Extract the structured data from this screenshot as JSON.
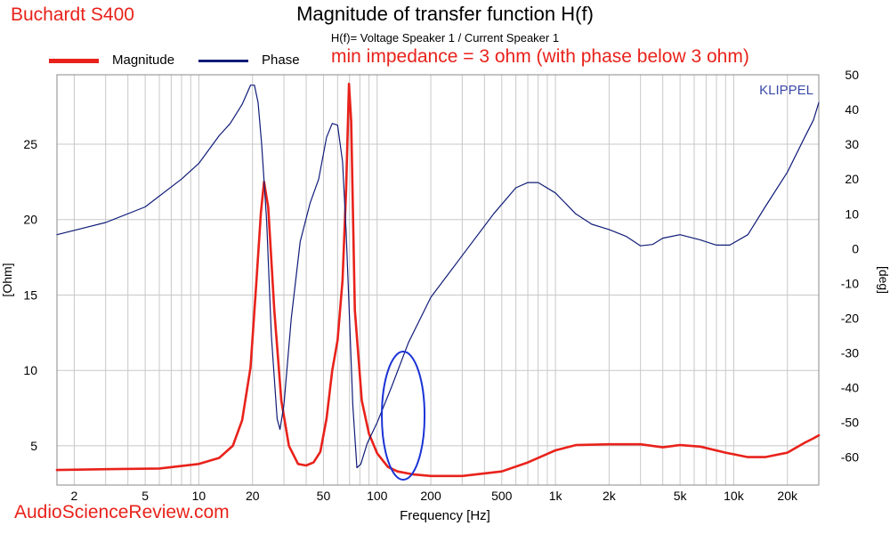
{
  "header": {
    "brand": "Buchardt S400",
    "title": "Magnitude of transfer function H(f)",
    "subtitle": "H(f)= Voltage Speaker 1 / Current Speaker 1",
    "note": "min impedance = 3 ohm (with phase below 3 ohm)",
    "klippel": "KLIPPEL",
    "watermark": "AudioScienceReview.com"
  },
  "colors": {
    "magnitude": "#e8221b",
    "phase": "#101c78",
    "ellipse": "#1a33d6",
    "grid": "#c8c8c8"
  },
  "chart_data": {
    "type": "line",
    "title": "Magnitude of transfer function H(f)",
    "subtitle": "H(f)= Voltage Speaker 1 / Current Speaker 1",
    "xlabel": "Frequency [Hz]",
    "ylabel": "[Ohm]",
    "y2label": "[deg]",
    "xscale": "log",
    "xlim": [
      1.6,
      30000
    ],
    "ylim": [
      2.4,
      29.6
    ],
    "y2lim": [
      -68,
      50
    ],
    "grid": true,
    "legend_position": "top-left",
    "x_ticks": [
      {
        "value": 2,
        "label": "2"
      },
      {
        "value": 5,
        "label": "5"
      },
      {
        "value": 10,
        "label": "10"
      },
      {
        "value": 20,
        "label": "20"
      },
      {
        "value": 50,
        "label": "50"
      },
      {
        "value": 100,
        "label": "100"
      },
      {
        "value": 200,
        "label": "200"
      },
      {
        "value": 500,
        "label": "500"
      },
      {
        "value": 1000,
        "label": "1k"
      },
      {
        "value": 2000,
        "label": "2k"
      },
      {
        "value": 5000,
        "label": "5k"
      },
      {
        "value": 10000,
        "label": "10k"
      },
      {
        "value": 20000,
        "label": "20k"
      }
    ],
    "y_ticks": [
      5,
      10,
      15,
      20,
      25
    ],
    "y2_ticks": [
      -60,
      -50,
      -40,
      -30,
      -20,
      -10,
      0,
      10,
      20,
      30,
      40,
      50
    ],
    "series": [
      {
        "name": "Magnitude",
        "axis": "left",
        "points": [
          [
            1.6,
            3.4
          ],
          [
            3,
            3.45
          ],
          [
            6,
            3.5
          ],
          [
            10,
            3.8
          ],
          [
            13,
            4.2
          ],
          [
            15.5,
            5.0
          ],
          [
            17.5,
            6.7
          ],
          [
            19.5,
            10.2
          ],
          [
            21,
            15.8
          ],
          [
            22.3,
            20.5
          ],
          [
            23.2,
            22.5
          ],
          [
            24.5,
            20.8
          ],
          [
            26.5,
            14.0
          ],
          [
            29,
            8.0
          ],
          [
            32,
            5.0
          ],
          [
            36,
            3.8
          ],
          [
            40,
            3.7
          ],
          [
            44,
            3.9
          ],
          [
            48,
            4.6
          ],
          [
            52,
            6.8
          ],
          [
            56,
            10.0
          ],
          [
            60,
            12.0
          ],
          [
            64,
            16.0
          ],
          [
            67,
            22.0
          ],
          [
            69.5,
            29.0
          ],
          [
            71.5,
            26.5
          ],
          [
            75,
            14.0
          ],
          [
            82,
            8.0
          ],
          [
            90,
            5.8
          ],
          [
            100,
            4.5
          ],
          [
            115,
            3.6
          ],
          [
            130,
            3.3
          ],
          [
            160,
            3.1
          ],
          [
            200,
            3.0
          ],
          [
            300,
            3.0
          ],
          [
            500,
            3.3
          ],
          [
            700,
            3.9
          ],
          [
            1000,
            4.7
          ],
          [
            1300,
            5.05
          ],
          [
            2000,
            5.1
          ],
          [
            3000,
            5.1
          ],
          [
            4000,
            4.9
          ],
          [
            5000,
            5.05
          ],
          [
            6500,
            4.95
          ],
          [
            9000,
            4.55
          ],
          [
            12000,
            4.25
          ],
          [
            15000,
            4.25
          ],
          [
            20000,
            4.55
          ],
          [
            25000,
            5.2
          ],
          [
            28000,
            5.5
          ],
          [
            30000,
            5.7
          ]
        ]
      },
      {
        "name": "Phase",
        "axis": "right",
        "points": [
          [
            1.6,
            4.0
          ],
          [
            3,
            7.5
          ],
          [
            5,
            12.0
          ],
          [
            8,
            20.0
          ],
          [
            10,
            24.5
          ],
          [
            13,
            32.5
          ],
          [
            15,
            36.0
          ],
          [
            17.5,
            41.5
          ],
          [
            19.5,
            47.0
          ],
          [
            20.5,
            47.0
          ],
          [
            21.5,
            42.0
          ],
          [
            22.5,
            30.0
          ],
          [
            24,
            8.0
          ],
          [
            25.5,
            -25.0
          ],
          [
            27.5,
            -49.0
          ],
          [
            28.5,
            -52.0
          ],
          [
            30,
            -45.0
          ],
          [
            33,
            -20.0
          ],
          [
            37,
            2.0
          ],
          [
            42,
            13.0
          ],
          [
            47,
            20.0
          ],
          [
            52,
            32.0
          ],
          [
            56,
            36.0
          ],
          [
            60,
            35.5
          ],
          [
            64,
            25.0
          ],
          [
            67,
            5.0
          ],
          [
            70,
            -20.0
          ],
          [
            73,
            -45.0
          ],
          [
            77,
            -63.0
          ],
          [
            81,
            -62.0
          ],
          [
            88,
            -56.0
          ],
          [
            100,
            -50.0
          ],
          [
            120,
            -40.0
          ],
          [
            150,
            -27.0
          ],
          [
            200,
            -14.0
          ],
          [
            300,
            -2.0
          ],
          [
            450,
            10.0
          ],
          [
            600,
            17.5
          ],
          [
            700,
            19.0
          ],
          [
            800,
            19.0
          ],
          [
            1000,
            16.0
          ],
          [
            1300,
            10.0
          ],
          [
            1600,
            7.0
          ],
          [
            2000,
            5.5
          ],
          [
            2500,
            3.5
          ],
          [
            3000,
            0.8
          ],
          [
            3500,
            1.2
          ],
          [
            4000,
            3.0
          ],
          [
            5000,
            4.0
          ],
          [
            6500,
            2.5
          ],
          [
            8000,
            1.0
          ],
          [
            9500,
            1.0
          ],
          [
            12000,
            4.0
          ],
          [
            15000,
            12.0
          ],
          [
            20000,
            22.0
          ],
          [
            25000,
            32.0
          ],
          [
            28000,
            37.0
          ],
          [
            30000,
            42.0
          ]
        ]
      }
    ],
    "annotations": [
      {
        "type": "ellipse",
        "center_hz": 140,
        "center_ohm": 7.0,
        "note": "circled region near 100-200 Hz"
      }
    ]
  }
}
